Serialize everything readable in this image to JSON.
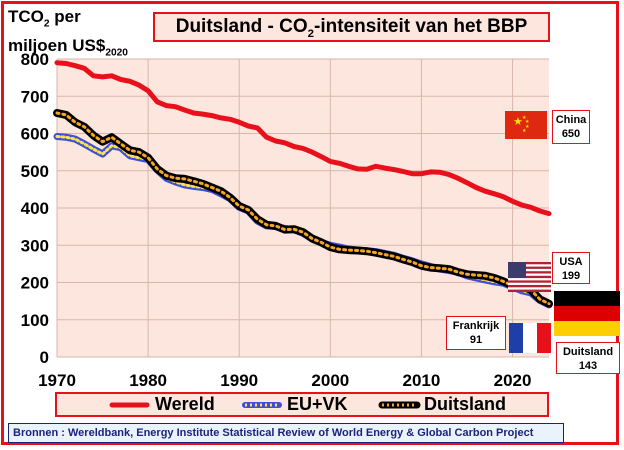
{
  "title": {
    "pre": "Duitsland - CO",
    "sub": "2",
    "post": "-intensiteit van het BBP"
  },
  "ylabel": {
    "line1_pre": "TCO",
    "line1_sub": "2",
    "line1_post": " per",
    "line2_pre": "miljoen US$",
    "line2_sub": "2020"
  },
  "callouts": {
    "china": {
      "name": "China",
      "value": "650"
    },
    "usa": {
      "name": "USA",
      "value": "199"
    },
    "frankrijk": {
      "name": "Frankrijk",
      "value": "91"
    },
    "duitsland": {
      "name": "Duitsland",
      "value": "143"
    }
  },
  "legend": {
    "wereld": "Wereld",
    "euvk": "EU+VK",
    "duitsland": "Duitsland"
  },
  "sources": "Bronnen : Wereldbank, Energy Institute Statistical Review of World Energy & Global Carbon Project",
  "colors": {
    "wereld": "#e8101b",
    "euvk": "#3b4fd9",
    "duitsland": "#000000",
    "duitsland_dots": "#f5a623",
    "plot_bg": "#fde6dd",
    "frame": "#e8101b"
  },
  "chart_data": {
    "type": "line",
    "xlim": [
      1970,
      2024
    ],
    "ylim": [
      0,
      800
    ],
    "x_ticks": [
      "1970",
      "1980",
      "1990",
      "2000",
      "2010",
      "2020"
    ],
    "y_ticks": [
      "0",
      "100",
      "200",
      "300",
      "400",
      "500",
      "600",
      "700",
      "800"
    ],
    "grid": true,
    "legend_position": "bottom",
    "x": [
      1970,
      1971,
      1972,
      1973,
      1974,
      1975,
      1976,
      1977,
      1978,
      1979,
      1980,
      1981,
      1982,
      1983,
      1984,
      1985,
      1986,
      1987,
      1988,
      1989,
      1990,
      1991,
      1992,
      1993,
      1994,
      1995,
      1996,
      1997,
      1998,
      1999,
      2000,
      2001,
      2002,
      2003,
      2004,
      2005,
      2006,
      2007,
      2008,
      2009,
      2010,
      2011,
      2012,
      2013,
      2014,
      2015,
      2016,
      2017,
      2018,
      2019,
      2020,
      2021,
      2022,
      2023,
      2024
    ],
    "series": [
      {
        "name": "Wereld",
        "values": [
          790,
          788,
          782,
          775,
          755,
          752,
          755,
          745,
          740,
          730,
          715,
          685,
          675,
          672,
          663,
          655,
          652,
          648,
          642,
          638,
          630,
          620,
          615,
          590,
          580,
          575,
          565,
          560,
          550,
          538,
          525,
          520,
          512,
          505,
          504,
          512,
          507,
          503,
          498,
          492,
          492,
          497,
          496,
          490,
          480,
          468,
          455,
          445,
          438,
          430,
          418,
          408,
          402,
          392,
          385
        ]
      },
      {
        "name": "EU+VK",
        "values": [
          592,
          590,
          585,
          572,
          558,
          545,
          567,
          562,
          540,
          535,
          530,
          502,
          480,
          470,
          462,
          458,
          455,
          450,
          438,
          425,
          402,
          392,
          365,
          352,
          350,
          345,
          342,
          332,
          318,
          308,
          300,
          295,
          290,
          287,
          285,
          283,
          278,
          273,
          265,
          258,
          250,
          243,
          236,
          232,
          228,
          218,
          212,
          207,
          202,
          198,
          188,
          178,
          172,
          152,
          140
        ]
      },
      {
        "name": "Duitsland",
        "values": [
          655,
          650,
          630,
          618,
          595,
          578,
          590,
          572,
          555,
          550,
          535,
          505,
          487,
          480,
          478,
          472,
          465,
          455,
          445,
          428,
          405,
          395,
          370,
          355,
          352,
          342,
          343,
          335,
          318,
          308,
          295,
          289,
          287,
          286,
          284,
          280,
          275,
          270,
          262,
          255,
          245,
          240,
          238,
          236,
          228,
          222,
          220,
          218,
          212,
          203,
          192,
          190,
          180,
          155,
          143
        ]
      }
    ]
  }
}
